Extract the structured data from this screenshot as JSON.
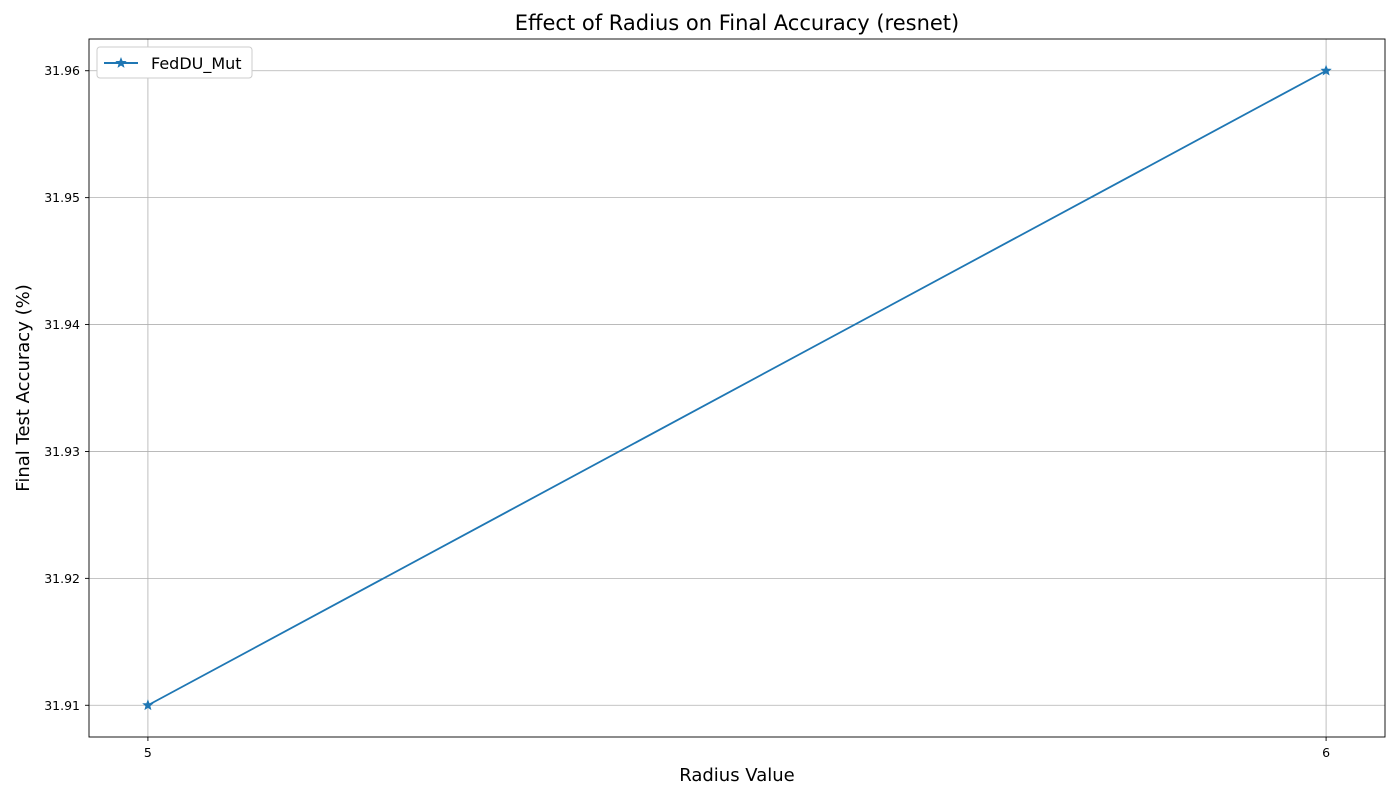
{
  "chart_data": {
    "type": "line",
    "title": "Effect of Radius on Final Accuracy (resnet)",
    "xlabel": "Radius Value",
    "ylabel": "Final Test Accuracy (%)",
    "x": [
      5,
      6
    ],
    "x_ticks": [
      "5",
      "6"
    ],
    "y_ticks": [
      "31.91",
      "31.92",
      "31.93",
      "31.94",
      "31.95",
      "31.96"
    ],
    "ylim": [
      31.9075,
      31.9625
    ],
    "xlim": [
      4.95,
      6.05
    ],
    "grid": true,
    "legend_position": "upper-left",
    "series": [
      {
        "name": "FedDU_Mut",
        "values": [
          31.91,
          31.96
        ],
        "color": "#1f77b4",
        "marker": "star"
      }
    ]
  }
}
